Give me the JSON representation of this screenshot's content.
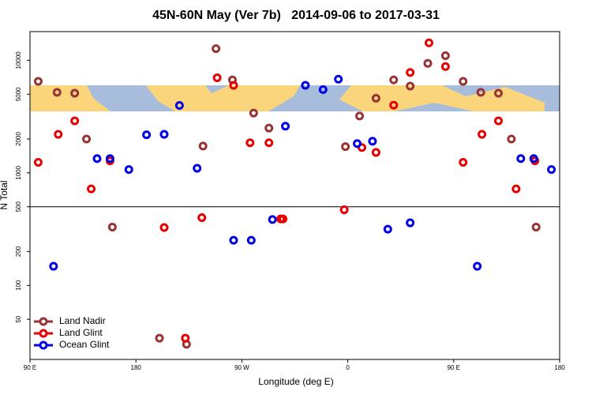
{
  "chart_data": {
    "type": "scatter",
    "title": "45N-60N May (Ver 7b)   2014-09-06 to 2017-03-31",
    "x_label": "Longitude (deg E)",
    "y_label": "N Total",
    "xlim": [
      90,
      540
    ],
    "ylim": [
      22,
      18000
    ],
    "log_y": true,
    "hline": 500,
    "legend": "lower left",
    "xticks": [
      {
        "value": 90,
        "label": "90 E"
      },
      180,
      {
        "value": 270,
        "label": "90 W"
      },
      {
        "value": 360,
        "label": "0"
      },
      {
        "value": 450,
        "label": "90 E"
      },
      {
        "value": 540,
        "label": "180"
      }
    ],
    "yticks": [
      50,
      100,
      200,
      500,
      1000,
      2000,
      5000,
      10000
    ],
    "series": [
      {
        "name": "Land Nadir",
        "color": "#993333",
        "x": [
          97,
          113,
          128,
          138,
          160,
          200,
          223,
          237,
          248,
          262,
          280,
          293,
          358,
          370,
          384,
          399,
          413,
          428,
          443,
          458,
          473,
          488,
          499,
          520
        ],
        "values": [
          6500,
          5200,
          5100,
          2000,
          330,
          34,
          30,
          1730,
          12700,
          6700,
          3400,
          2500,
          1710,
          3200,
          4600,
          6700,
          5900,
          9400,
          11000,
          6500,
          5200,
          5100,
          2000,
          330
        ]
      },
      {
        "name": "Land Glint",
        "color": "#e60000",
        "x": [
          97,
          114,
          128,
          142,
          158,
          204,
          222,
          236,
          249,
          263,
          277,
          293,
          303,
          305,
          357,
          372,
          384,
          399,
          413,
          429,
          443,
          458,
          474,
          488,
          503,
          519
        ],
        "values": [
          1240,
          2200,
          2900,
          720,
          1280,
          327,
          34,
          400,
          7000,
          6000,
          1850,
          1850,
          390,
          390,
          470,
          1680,
          1520,
          4000,
          7800,
          14300,
          8800,
          1240,
          2200,
          2900,
          720,
          1280
        ]
      },
      {
        "name": "Ocean Glint",
        "color": "#0000e6",
        "x": [
          110,
          147,
          158,
          174,
          189,
          204,
          217,
          232,
          263,
          278,
          296,
          307,
          324,
          339,
          352,
          368,
          381,
          394,
          413,
          470,
          507,
          518,
          533
        ],
        "values": [
          148,
          1340,
          1340,
          1070,
          2180,
          2200,
          3970,
          1100,
          252,
          252,
          385,
          2600,
          6000,
          5500,
          6800,
          1820,
          1910,
          316,
          360,
          148,
          1340,
          1340,
          1070
        ]
      }
    ]
  }
}
